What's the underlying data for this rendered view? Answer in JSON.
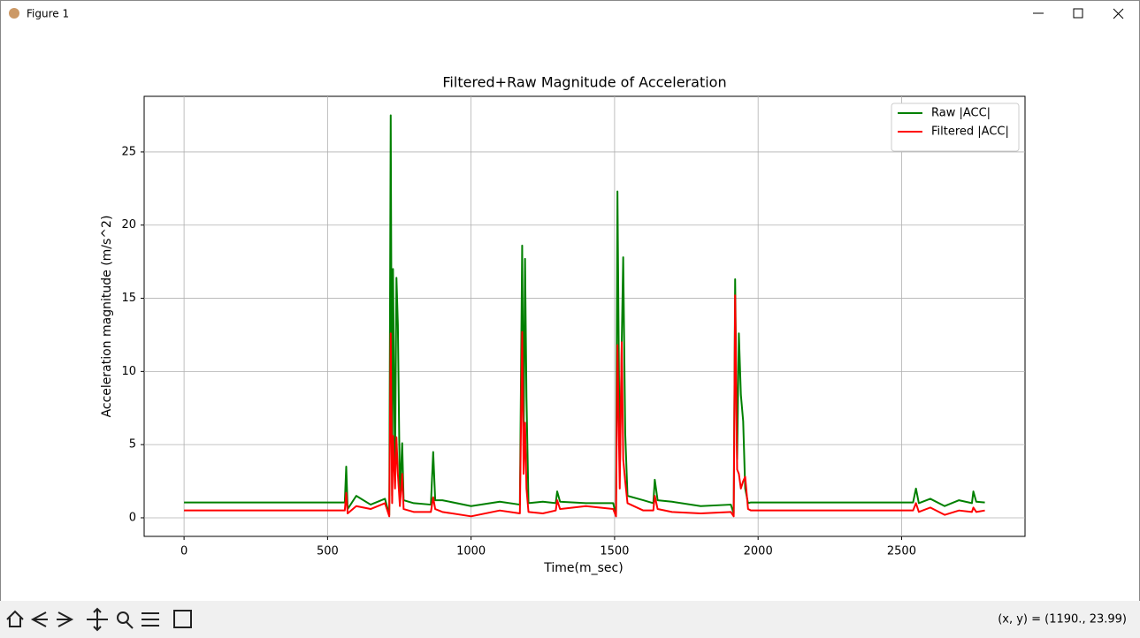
{
  "window": {
    "title": "Figure 1",
    "status": "(x, y) = (1190., 23.99)"
  },
  "chart_data": {
    "type": "line",
    "title": "Filtered+Raw Magnitude of Acceleration",
    "x_label": "Time(m_sec)",
    "y_label": "Acceleration magnitude (m/s^2)",
    "x": [
      0,
      560,
      565,
      570,
      600,
      650,
      700,
      715,
      720,
      725,
      728,
      735,
      740,
      745,
      752,
      760,
      765,
      800,
      860,
      868,
      875,
      900,
      1000,
      1100,
      1170,
      1178,
      1183,
      1188,
      1193,
      1200,
      1250,
      1295,
      1300,
      1310,
      1400,
      1495,
      1505,
      1510,
      1518,
      1525,
      1530,
      1537,
      1545,
      1600,
      1635,
      1640,
      1650,
      1700,
      1800,
      1905,
      1915,
      1920,
      1927,
      1933,
      1940,
      1948,
      1955,
      1965,
      1975,
      2540,
      2550,
      2560,
      2600,
      2650,
      2700,
      2745,
      2750,
      2760,
      2790
    ],
    "series": [
      {
        "name": "Raw |ACC|",
        "color": "#008000",
        "values": [
          1.05,
          1.05,
          3.5,
          0.6,
          1.5,
          0.9,
          1.3,
          0.2,
          27.5,
          1.5,
          17.0,
          3.0,
          16.4,
          13.2,
          1.5,
          5.1,
          1.2,
          1.0,
          0.9,
          4.5,
          1.2,
          1.2,
          0.8,
          1.1,
          0.9,
          18.6,
          5.0,
          17.7,
          8.2,
          1.0,
          1.1,
          1.0,
          1.8,
          1.1,
          1.0,
          1.0,
          0.2,
          22.3,
          3.0,
          12.0,
          17.8,
          5.8,
          1.5,
          1.2,
          1.0,
          2.6,
          1.2,
          1.1,
          0.8,
          0.9,
          0.3,
          16.3,
          4.0,
          12.6,
          8.4,
          6.6,
          2.0,
          1.0,
          1.05,
          1.05,
          2.0,
          1.0,
          1.3,
          0.8,
          1.2,
          1.0,
          1.8,
          1.1,
          1.05
        ]
      },
      {
        "name": "Filtered |ACC|",
        "color": "#ff0000",
        "values": [
          0.5,
          0.5,
          1.7,
          0.3,
          0.8,
          0.6,
          1.0,
          0.1,
          12.6,
          1.0,
          5.6,
          2.0,
          5.5,
          3.0,
          0.8,
          3.0,
          0.6,
          0.4,
          0.4,
          1.4,
          0.6,
          0.4,
          0.1,
          0.5,
          0.3,
          12.7,
          3.0,
          6.5,
          2.0,
          0.4,
          0.3,
          0.5,
          1.2,
          0.6,
          0.8,
          0.6,
          0.1,
          11.8,
          2.0,
          12.0,
          4.0,
          2.5,
          1.0,
          0.5,
          0.5,
          1.5,
          0.6,
          0.4,
          0.3,
          0.4,
          0.1,
          15.2,
          3.3,
          3.0,
          2.0,
          2.5,
          2.8,
          0.6,
          0.5,
          0.5,
          1.0,
          0.4,
          0.7,
          0.2,
          0.5,
          0.4,
          0.7,
          0.4,
          0.5
        ]
      }
    ],
    "xlim": [
      -139,
      2930
    ],
    "ylim": [
      -1.27,
      28.8
    ],
    "xticks": [
      0,
      500,
      1000,
      1500,
      2000,
      2500
    ],
    "yticks": [
      0,
      5,
      10,
      15,
      20,
      25
    ],
    "grid": true,
    "legend": "upper right"
  }
}
